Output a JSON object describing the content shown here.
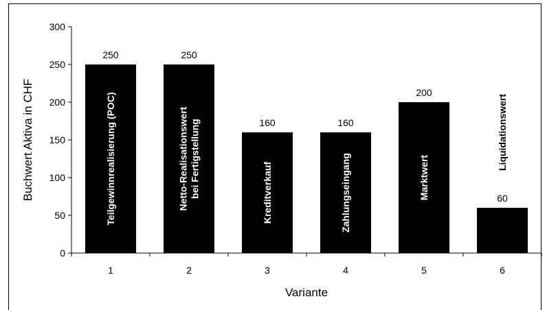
{
  "chart_data": {
    "type": "bar",
    "title": "",
    "xlabel": "Variante",
    "ylabel": "Buchwert Aktiva in CHF",
    "ylim": [
      0,
      300
    ],
    "yticks": [
      0,
      50,
      100,
      150,
      200,
      250,
      300
    ],
    "categories": [
      "1",
      "2",
      "3",
      "4",
      "5",
      "6"
    ],
    "values": [
      250,
      250,
      160,
      160,
      200,
      60
    ],
    "data_labels": [
      "250",
      "250",
      "160",
      "160",
      "200",
      "60"
    ],
    "bar_text": [
      [
        "Teilgewinnrealisierung (POC)"
      ],
      [
        "Netto-Realisationswert",
        "bei Fertigstellung"
      ],
      [
        "Kreditverkauf"
      ],
      [
        "Zahlungseingang"
      ],
      [
        "Marktwert"
      ],
      [
        "Liquidationswert"
      ]
    ],
    "bar_color": "#000000",
    "bar_text_color": "#ffffff",
    "grid": false,
    "legend": "none"
  }
}
